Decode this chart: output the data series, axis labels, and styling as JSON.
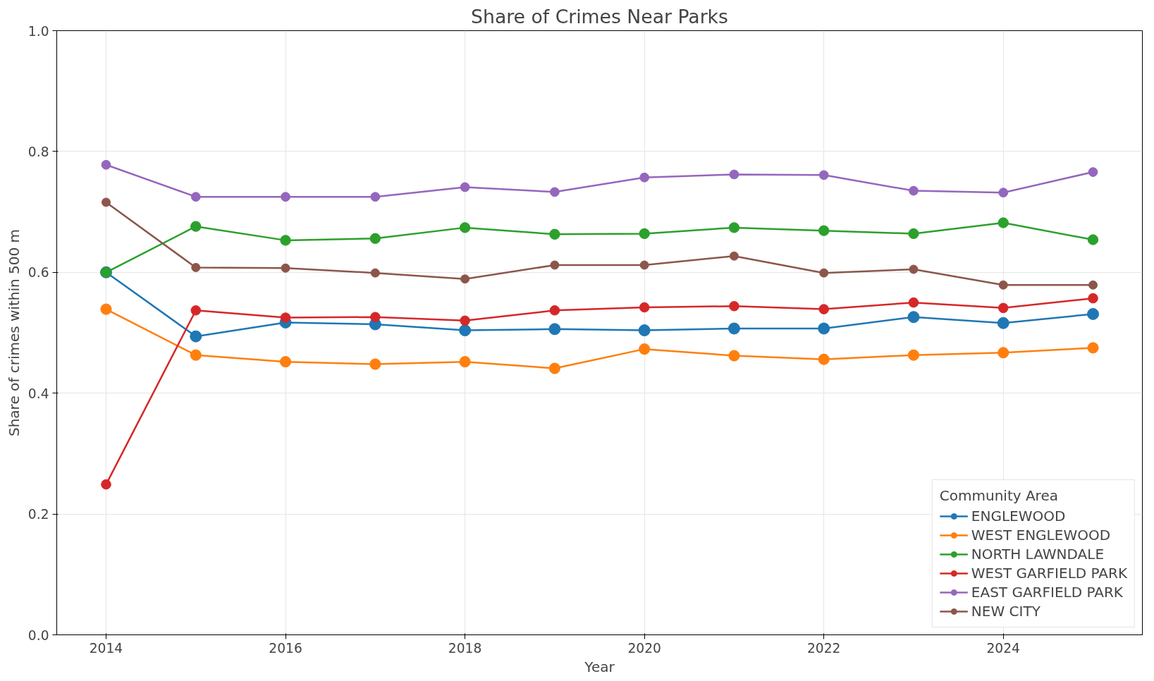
{
  "chart_data": {
    "type": "line",
    "title": "Share of Crimes Near Parks",
    "xlabel": "Year",
    "ylabel": "Share of crimes within 500 m",
    "legend_title": "Community Area",
    "x": [
      2014,
      2015,
      2016,
      2017,
      2018,
      2019,
      2020,
      2021,
      2022,
      2023,
      2024,
      2025
    ],
    "series": [
      {
        "name": "ENGLEWOOD",
        "color": "#1f77b4",
        "values": [
          0.6,
          0.494,
          0.517,
          0.514,
          0.504,
          0.506,
          0.504,
          0.507,
          0.507,
          0.526,
          0.516,
          0.531
        ]
      },
      {
        "name": "WEST ENGLEWOOD",
        "color": "#ff7f0e",
        "values": [
          0.539,
          0.463,
          0.452,
          0.448,
          0.452,
          0.441,
          0.473,
          0.462,
          0.456,
          0.463,
          0.467,
          0.475
        ]
      },
      {
        "name": "NORTH LAWNDALE",
        "color": "#2ca02c",
        "values": [
          0.6,
          0.676,
          0.653,
          0.656,
          0.674,
          0.663,
          0.664,
          0.674,
          0.669,
          0.664,
          0.682,
          0.654
        ]
      },
      {
        "name": "WEST GARFIELD PARK",
        "color": "#d62728",
        "values": [
          0.249,
          0.537,
          0.525,
          0.526,
          0.52,
          0.537,
          0.542,
          0.544,
          0.539,
          0.55,
          0.541,
          0.557
        ]
      },
      {
        "name": "EAST GARFIELD PARK",
        "color": "#9467bd",
        "values": [
          0.778,
          0.725,
          0.725,
          0.725,
          0.741,
          0.733,
          0.757,
          0.762,
          0.761,
          0.735,
          0.732,
          0.766
        ]
      },
      {
        "name": "NEW CITY",
        "color": "#8c564b",
        "values": [
          0.716,
          0.608,
          0.607,
          0.599,
          0.589,
          0.612,
          0.612,
          0.627,
          0.599,
          0.605,
          0.579,
          0.579
        ]
      }
    ],
    "xlim": [
      2013.45,
      2025.55
    ],
    "ylim": [
      0.0,
      1.0
    ],
    "xticks": [
      2014,
      2016,
      2018,
      2020,
      2022,
      2024
    ],
    "yticks": [
      {
        "value": 0,
        "label": "0.0"
      },
      {
        "value": 0.2,
        "label": "0.2"
      },
      {
        "value": 0.4,
        "label": "0.4"
      },
      {
        "value": 0.6,
        "label": "0.6"
      },
      {
        "value": 0.8,
        "label": "0.8"
      },
      {
        "value": 1,
        "label": "1.0"
      }
    ],
    "grid": true,
    "legend": "bottom right",
    "marker": "circle",
    "line_style": "solid"
  }
}
